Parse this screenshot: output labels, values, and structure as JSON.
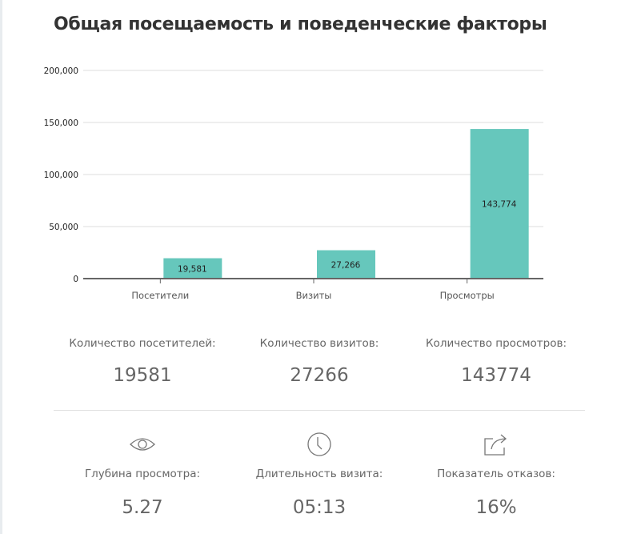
{
  "title": "Общая посещаемость и поведенческие факторы",
  "chart_data": {
    "type": "bar",
    "categories": [
      "Посетители",
      "Визиты",
      "Просмотры"
    ],
    "values": [
      19581,
      27266,
      143774
    ],
    "data_labels": [
      "19,581",
      "27,266",
      "143,774"
    ],
    "ylim": [
      0,
      200000
    ],
    "yticks": [
      0,
      50000,
      100000,
      150000,
      200000
    ],
    "ytick_labels": [
      "0",
      "50,000",
      "100,000",
      "150,000",
      "200,000"
    ],
    "grid": true,
    "color": "#66c7bc"
  },
  "stats": [
    {
      "label": "Количество посетителей:",
      "value": "19581"
    },
    {
      "label": "Количество визитов:",
      "value": "27266"
    },
    {
      "label": "Количество просмотров:",
      "value": "143774"
    }
  ],
  "factors": [
    {
      "icon": "eye-icon",
      "label": "Глубина просмотра:",
      "value": "5.27"
    },
    {
      "icon": "clock-icon",
      "label": "Длительность визита:",
      "value": "05:13"
    },
    {
      "icon": "share-icon",
      "label": "Показатель отказов:",
      "value": "16%"
    }
  ]
}
